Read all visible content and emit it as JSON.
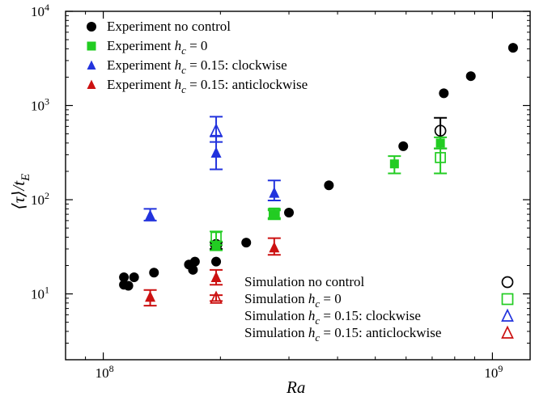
{
  "chart_data": {
    "type": "scatter",
    "title": "",
    "xlabel": "Ra",
    "ylabel": "⟨τ⟩/t_E",
    "x_scale": "log",
    "y_scale": "log",
    "xlim": [
      80000000,
      1250000000
    ],
    "ylim": [
      2,
      10000
    ],
    "x_ticks": [
      {
        "value": 100000000,
        "base": "10",
        "exp": "8"
      },
      {
        "value": 1000000000,
        "base": "10",
        "exp": "9"
      }
    ],
    "y_ticks": [
      {
        "value": 10,
        "base": "10",
        "exp": "1"
      },
      {
        "value": 100,
        "base": "10",
        "exp": "2"
      },
      {
        "value": 1000,
        "base": "10",
        "exp": "3"
      },
      {
        "value": 10000,
        "base": "10",
        "exp": "4"
      }
    ],
    "grid": false,
    "legend_experiment": {
      "placement": "top-left",
      "entries": [
        {
          "series": 0,
          "parts": [
            {
              "t": "Experiment no control"
            }
          ]
        },
        {
          "series": 1,
          "parts": [
            {
              "t": "Experiment "
            },
            {
              "t": "h",
              "i": true
            },
            {
              "t": "c",
              "sub": true,
              "i": true
            },
            {
              "t": " = 0"
            }
          ]
        },
        {
          "series": 2,
          "parts": [
            {
              "t": "Experiment "
            },
            {
              "t": "h",
              "i": true
            },
            {
              "t": "c",
              "sub": true,
              "i": true
            },
            {
              "t": " = 0.15: clockwise"
            }
          ]
        },
        {
          "series": 3,
          "parts": [
            {
              "t": "Experiment "
            },
            {
              "t": "h",
              "i": true
            },
            {
              "t": "c",
              "sub": true,
              "i": true
            },
            {
              "t": " = 0.15: anticlockwise"
            }
          ]
        }
      ]
    },
    "legend_simulation": {
      "placement": "bottom-right",
      "entries": [
        {
          "series": 4,
          "parts": [
            {
              "t": "Simulation no control"
            }
          ]
        },
        {
          "series": 5,
          "parts": [
            {
              "t": "Simulation "
            },
            {
              "t": "h",
              "i": true
            },
            {
              "t": "c",
              "sub": true,
              "i": true
            },
            {
              "t": " = 0"
            }
          ]
        },
        {
          "series": 6,
          "parts": [
            {
              "t": "Simulation "
            },
            {
              "t": "h",
              "i": true
            },
            {
              "t": "c",
              "sub": true,
              "i": true
            },
            {
              "t": " = 0.15: clockwise"
            }
          ]
        },
        {
          "series": 7,
          "parts": [
            {
              "t": "Simulation "
            },
            {
              "t": "h",
              "i": true
            },
            {
              "t": "c",
              "sub": true,
              "i": true
            },
            {
              "t": " = 0.15: anticlockwise"
            }
          ]
        }
      ]
    },
    "series": [
      {
        "name": "Experiment no control",
        "marker": "circle",
        "filled": true,
        "color": "#000000",
        "points": [
          {
            "x": 113000000,
            "y": 12.5
          },
          {
            "x": 113000000,
            "y": 15
          },
          {
            "x": 116000000,
            "y": 12.2
          },
          {
            "x": 120000000,
            "y": 15
          },
          {
            "x": 135000000,
            "y": 16.8
          },
          {
            "x": 166000000,
            "y": 20.5
          },
          {
            "x": 170000000,
            "y": 18
          },
          {
            "x": 172000000,
            "y": 22
          },
          {
            "x": 195000000,
            "y": 22
          },
          {
            "x": 233000000,
            "y": 35
          },
          {
            "x": 300000000,
            "y": 73
          },
          {
            "x": 380000000,
            "y": 142
          },
          {
            "x": 590000000,
            "y": 370
          },
          {
            "x": 750000000,
            "y": 1350
          },
          {
            "x": 880000000,
            "y": 2050
          },
          {
            "x": 1130000000,
            "y": 4100
          }
        ]
      },
      {
        "name": "Experiment h_c = 0",
        "marker": "square",
        "filled": true,
        "color": "#22cc22",
        "points": [
          {
            "x": 195000000,
            "y": 32,
            "ylo": 29,
            "yhi": 36
          },
          {
            "x": 275000000,
            "y": 70,
            "ylo": 64,
            "yhi": 77
          },
          {
            "x": 560000000,
            "y": 240,
            "ylo": 190,
            "yhi": 290
          },
          {
            "x": 735000000,
            "y": 400,
            "ylo": 350,
            "yhi": 460
          }
        ]
      },
      {
        "name": "Experiment h_c = 0.15: clockwise",
        "marker": "triangle",
        "filled": true,
        "color": "#2233dd",
        "points": [
          {
            "x": 132000000,
            "y": 68,
            "ylo": 60,
            "yhi": 80
          },
          {
            "x": 195000000,
            "y": 315,
            "ylo": 210,
            "yhi": 470
          },
          {
            "x": 275000000,
            "y": 118,
            "ylo": 98,
            "yhi": 160
          }
        ]
      },
      {
        "name": "Experiment h_c = 0.15: anticlockwise",
        "marker": "triangle",
        "filled": true,
        "color": "#cc1111",
        "points": [
          {
            "x": 132000000,
            "y": 9.3,
            "ylo": 7.5,
            "yhi": 11
          },
          {
            "x": 195000000,
            "y": 15,
            "ylo": 12.5,
            "yhi": 18
          },
          {
            "x": 275000000,
            "y": 31,
            "ylo": 26,
            "yhi": 39
          }
        ]
      },
      {
        "name": "Simulation no control",
        "marker": "circle",
        "filled": false,
        "color": "#000000",
        "points": [
          {
            "x": 195000000,
            "y": 33,
            "ylo": 30,
            "yhi": 35
          },
          {
            "x": 735000000,
            "y": 540,
            "ylo": 350,
            "yhi": 740
          }
        ]
      },
      {
        "name": "Simulation h_c = 0",
        "marker": "square",
        "filled": false,
        "color": "#22cc22",
        "points": [
          {
            "x": 195000000,
            "y": 40,
            "ylo": 33,
            "yhi": 46
          },
          {
            "x": 275000000,
            "y": 72,
            "ylo": 62,
            "yhi": 80
          },
          {
            "x": 735000000,
            "y": 280,
            "ylo": 190,
            "yhi": 350
          }
        ]
      },
      {
        "name": "Simulation h_c = 0.15: clockwise",
        "marker": "triangle",
        "filled": false,
        "color": "#2233dd",
        "points": [
          {
            "x": 195000000,
            "y": 540,
            "ylo": 410,
            "yhi": 760
          }
        ]
      },
      {
        "name": "Simulation h_c = 0.15: anticlockwise",
        "marker": "triangle",
        "filled": false,
        "color": "#cc1111",
        "points": [
          {
            "x": 195000000,
            "y": 9.0,
            "ylo": 8.4,
            "yhi": 9.7
          }
        ]
      }
    ]
  }
}
